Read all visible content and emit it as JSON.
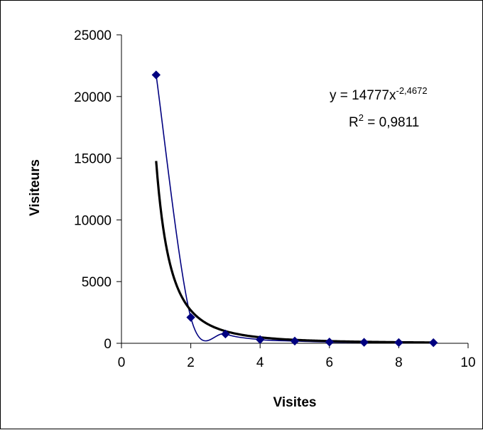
{
  "chart_data": {
    "type": "scatter",
    "xlabel": "Visites",
    "ylabel": "Visiteurs",
    "xlim": [
      0,
      10
    ],
    "ylim": [
      0,
      25000
    ],
    "x_ticks": [
      "0",
      "2",
      "4",
      "6",
      "8",
      "10"
    ],
    "y_ticks": [
      "0",
      "5000",
      "10000",
      "15000",
      "20000",
      "25000"
    ],
    "grid": false,
    "series": [
      {
        "x": [
          1,
          2,
          3,
          4,
          5,
          6,
          7,
          8,
          9
        ],
        "y": [
          21750,
          2100,
          750,
          300,
          180,
          100,
          80,
          60,
          50
        ],
        "color": "#000080",
        "marker": "diamond",
        "line": "smooth"
      }
    ],
    "trendline": {
      "kind": "power",
      "coefficient": 14777,
      "exponent": -2.4672,
      "x_range": [
        1,
        9
      ],
      "color": "#000000",
      "equation_prefix": "y = 14777x",
      "equation_exponent": "-2,4672",
      "r2_prefix": "R",
      "r2_sup": "2",
      "r2_suffix": " = 0,9811"
    }
  }
}
